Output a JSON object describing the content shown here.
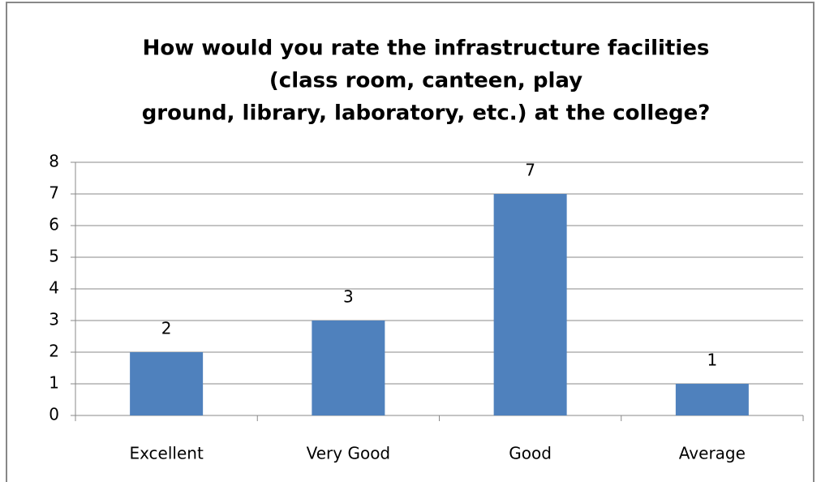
{
  "chart_data": {
    "type": "bar",
    "title": [
      "How would you rate the infrastructure facilities",
      "(class room, canteen, play",
      "ground, library, laboratory, etc.) at the college?"
    ],
    "categories": [
      "Excellent",
      "Very Good",
      "Good",
      "Average"
    ],
    "values": [
      2,
      3,
      7,
      1
    ],
    "color": "#4f81bd",
    "ylim": [
      0,
      8
    ],
    "yticks": [
      0,
      1,
      2,
      3,
      4,
      5,
      6,
      7,
      8
    ],
    "grid": true
  }
}
